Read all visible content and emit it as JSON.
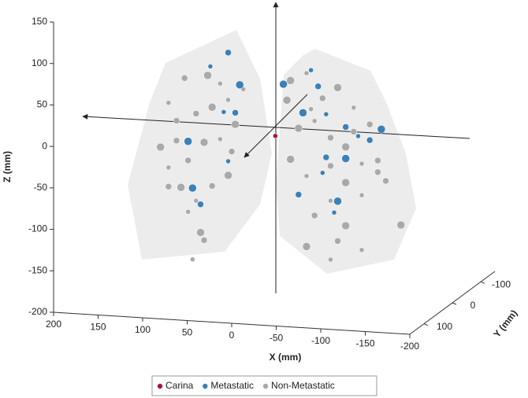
{
  "chart_data": {
    "type": "scatter3d",
    "x_label": "X (mm)",
    "y_label": "Y (mm)",
    "z_label": "Z (mm)",
    "xlim": [
      200,
      -200
    ],
    "xticks": [
      200,
      150,
      100,
      50,
      0,
      -50,
      -100,
      -150,
      -200
    ],
    "ylim": [
      150,
      -150
    ],
    "yticks": [
      100,
      0,
      -100
    ],
    "zlim": [
      -200,
      150
    ],
    "zticks": [
      150,
      100,
      50,
      0,
      -50,
      -100,
      -150,
      -200
    ],
    "legend": "bottom",
    "series": [
      {
        "name": "Carina",
        "color": "#a3173f",
        "x": [
          -14
        ],
        "y": [
          40
        ],
        "z": [
          -1
        ]
      },
      {
        "name": "Metastatic",
        "color": "#3b80b6",
        "x": [
          59,
          39,
          26,
          44,
          31,
          84,
          39,
          70,
          79,
          -54,
          -62,
          -45,
          -71,
          -93,
          -133,
          -107,
          -71,
          -93,
          -67,
          -40,
          -84,
          -80,
          -120,
          -23
        ],
        "y": [
          40,
          40,
          40,
          40,
          40,
          40,
          40,
          40,
          40,
          40,
          40,
          40,
          40,
          40,
          40,
          40,
          40,
          40,
          40,
          40,
          40,
          40,
          40,
          40
        ],
        "z": [
          78,
          96,
          58,
          24,
          24,
          -14,
          -35,
          -89,
          -70,
          81,
          62,
          29,
          29,
          15,
          15,
          5,
          -23,
          -23,
          -42,
          -70,
          -75,
          -89,
          1,
          62
        ]
      },
      {
        "name": "Non-Metastatic",
        "color": "#a9a9a9",
        "x": [
          106,
          88,
          62,
          48,
          75,
          57,
          39,
          97,
          115,
          106,
          84,
          66,
          48,
          35,
          92,
          75,
          57,
          70,
          79,
          66,
          31,
          22,
          97,
          39,
          84,
          106,
          -31,
          -49,
          -67,
          -84,
          -102,
          -120,
          -40,
          -58,
          -76,
          -93,
          -111,
          -129,
          -31,
          -49,
          -76,
          -93,
          -111,
          -138,
          -155,
          -76,
          -58,
          -93,
          -111,
          -84,
          -49,
          -76,
          -129,
          -27,
          -54,
          -102
        ],
        "y": [
          40,
          40,
          40,
          40,
          40,
          40,
          40,
          40,
          40,
          40,
          40,
          40,
          40,
          40,
          40,
          40,
          40,
          40,
          40,
          40,
          40,
          40,
          40,
          40,
          40,
          40,
          40,
          40,
          40,
          40,
          40,
          40,
          40,
          40,
          40,
          40,
          40,
          40,
          40,
          40,
          40,
          40,
          40,
          40,
          40,
          40,
          40,
          40,
          40,
          40,
          40,
          40,
          40,
          40,
          40,
          40
        ],
        "z": [
          31,
          62,
          67,
          58,
          20,
          29,
          39,
          10,
          -23,
          -47,
          -37,
          -14,
          -9,
          -23,
          -70,
          -85,
          -66,
          -123,
          -156,
          -132,
          10,
          53,
          -14,
          -52,
          -99,
          -70,
          67,
          77,
          48,
          62,
          39,
          20,
          10,
          20,
          1,
          -9,
          -28,
          -37,
          -28,
          -47,
          -33,
          -52,
          -66,
          -47,
          -99,
          -75,
          -94,
          -104,
          -132,
          -123,
          -132,
          -146,
          -23,
          43,
          34,
          10
        ]
      }
    ]
  }
}
